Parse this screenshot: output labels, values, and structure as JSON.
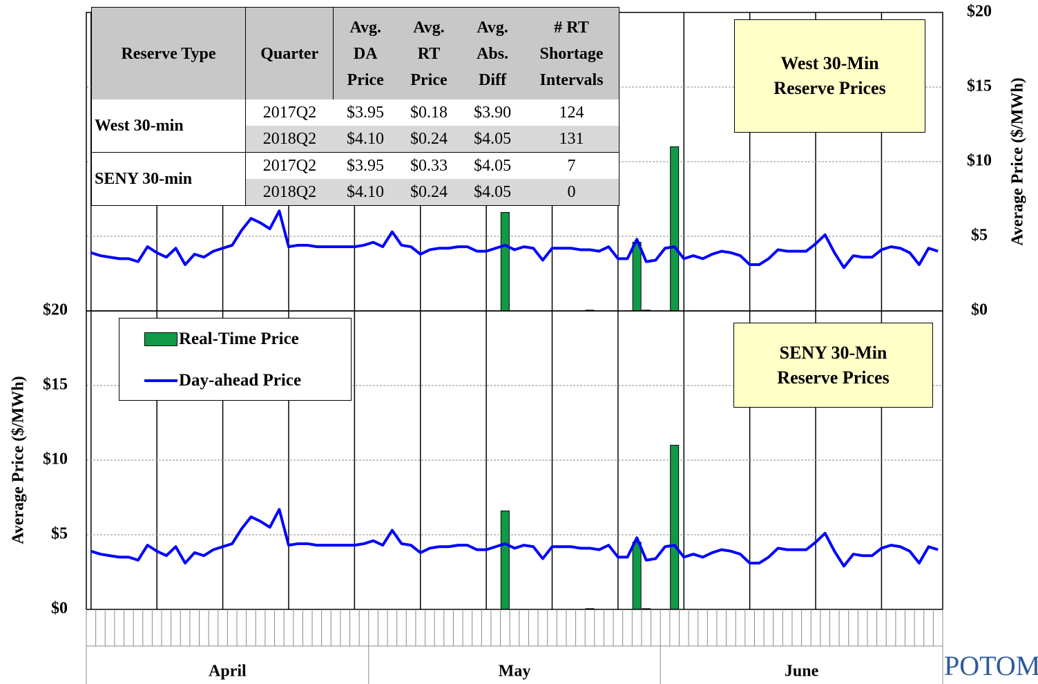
{
  "chart_data": [
    {
      "type": "combo",
      "title": "West 30-Min Reserve Prices",
      "y_label": "Average Price ($/MWh)",
      "y_axis_side": "right",
      "categories": [
        null,
        null,
        null,
        null,
        null,
        null,
        null,
        null,
        null,
        null,
        null,
        null,
        null,
        null,
        null,
        null,
        null,
        null,
        null,
        null,
        null,
        null,
        null,
        null,
        null,
        null,
        null,
        null,
        null,
        null,
        null,
        null,
        null,
        null,
        null,
        null,
        null,
        null,
        null,
        null,
        null,
        null,
        null,
        null,
        null,
        null,
        null,
        null,
        null,
        null,
        null,
        null,
        null,
        null,
        null,
        null,
        null,
        null,
        null,
        null,
        null,
        null,
        null,
        null,
        null,
        null,
        null,
        null,
        null,
        null,
        null,
        null,
        null,
        null,
        null,
        null,
        null,
        null,
        null,
        null,
        null,
        null,
        null,
        null,
        null,
        null,
        null,
        null,
        null,
        null,
        null
      ],
      "ylim": [
        0,
        20
      ],
      "grid": true,
      "yticks": [
        {
          "value": 0,
          "label": "$0"
        },
        {
          "value": 5,
          "label": "$5"
        },
        {
          "value": 10,
          "label": "$10"
        },
        {
          "value": 15,
          "label": "$15"
        },
        {
          "value": 20,
          "label": "$20"
        }
      ],
      "series": [
        {
          "kind": "bar",
          "color": "#109a47",
          "values": [
            0,
            0,
            0,
            0,
            0,
            0,
            0,
            0,
            0,
            0,
            0,
            0,
            0,
            0,
            0,
            0,
            0,
            0,
            0,
            0,
            0,
            0,
            0,
            0,
            0,
            0,
            0,
            0,
            0,
            0,
            0,
            0,
            0,
            0,
            0,
            0,
            0,
            0,
            0,
            0,
            0,
            0,
            0,
            0,
            6.6,
            0,
            0,
            0,
            0,
            0,
            0,
            0,
            0,
            0.05,
            0,
            0,
            0,
            0,
            4.6,
            0.05,
            0,
            0,
            11.0,
            0,
            0,
            0,
            0,
            0,
            0,
            0,
            0,
            0,
            0,
            0,
            0,
            0,
            0,
            0,
            0,
            0,
            0,
            0,
            0,
            0,
            0,
            0,
            0,
            0,
            0,
            0,
            0
          ]
        },
        {
          "kind": "line",
          "color": "#0000ff",
          "values": [
            3.9,
            3.7,
            3.6,
            3.5,
            3.5,
            3.3,
            4.3,
            3.9,
            3.6,
            4.2,
            3.1,
            3.8,
            3.6,
            4.0,
            4.2,
            4.4,
            5.4,
            6.2,
            5.9,
            5.5,
            6.7,
            4.3,
            4.4,
            4.4,
            4.3,
            4.3,
            4.3,
            4.3,
            4.3,
            4.4,
            4.6,
            4.3,
            5.3,
            4.4,
            4.3,
            3.8,
            4.1,
            4.2,
            4.2,
            4.3,
            4.3,
            4.0,
            4.0,
            4.2,
            4.4,
            4.1,
            4.3,
            4.2,
            3.4,
            4.2,
            4.2,
            4.2,
            4.1,
            4.1,
            4.0,
            4.3,
            3.5,
            3.5,
            4.8,
            3.3,
            3.4,
            4.2,
            4.3,
            3.5,
            3.7,
            3.5,
            3.8,
            4.0,
            3.9,
            3.7,
            3.1,
            3.1,
            3.5,
            4.1,
            4.0,
            4.0,
            4.0,
            4.5,
            5.1,
            3.9,
            2.9,
            3.7,
            3.6,
            3.6,
            4.1,
            4.3,
            4.2,
            3.9,
            3.1,
            4.2,
            4.0
          ]
        }
      ]
    },
    {
      "type": "combo",
      "title": "SENY 30-Min Reserve Prices",
      "y_label": "Average Price ($/MWh)",
      "y_axis_side": "left",
      "categories": [
        null,
        null,
        null,
        null,
        null,
        null,
        null,
        null,
        null,
        null,
        null,
        null,
        null,
        null,
        null,
        null,
        null,
        null,
        null,
        null,
        null,
        null,
        null,
        null,
        null,
        null,
        null,
        null,
        null,
        null,
        null,
        null,
        null,
        null,
        null,
        null,
        null,
        null,
        null,
        null,
        null,
        null,
        null,
        null,
        null,
        null,
        null,
        null,
        null,
        null,
        null,
        null,
        null,
        null,
        null,
        null,
        null,
        null,
        null,
        null,
        null,
        null,
        null,
        null,
        null,
        null,
        null,
        null,
        null,
        null,
        null,
        null,
        null,
        null,
        null,
        null,
        null,
        null,
        null,
        null,
        null,
        null,
        null,
        null,
        null,
        null,
        null,
        null,
        null,
        null,
        null
      ],
      "ylim": [
        0,
        20
      ],
      "grid": true,
      "legend": "top-left",
      "yticks": [
        {
          "value": 0,
          "label": "$0"
        },
        {
          "value": 5,
          "label": "$5"
        },
        {
          "value": 10,
          "label": "$10"
        },
        {
          "value": 15,
          "label": "$15"
        },
        {
          "value": 20,
          "label": "$20"
        }
      ],
      "x_groups": [
        {
          "label": "April",
          "count": 30
        },
        {
          "label": "May",
          "count": 31
        },
        {
          "label": "June",
          "count": 30
        }
      ],
      "series": [
        {
          "name": "Real-Time Price",
          "kind": "bar",
          "color": "#109a47",
          "values": [
            0,
            0,
            0,
            0,
            0,
            0,
            0,
            0,
            0,
            0,
            0,
            0,
            0,
            0,
            0,
            0,
            0,
            0,
            0,
            0,
            0,
            0,
            0,
            0,
            0,
            0,
            0,
            0,
            0,
            0,
            0,
            0,
            0,
            0,
            0,
            0,
            0,
            0,
            0,
            0,
            0,
            0,
            0,
            0,
            6.6,
            0,
            0,
            0,
            0,
            0,
            0,
            0,
            0,
            0.05,
            0,
            0,
            0,
            0,
            4.5,
            0.05,
            0,
            0,
            11.0,
            0,
            0,
            0,
            0,
            0,
            0,
            0,
            0,
            0,
            0,
            0,
            0,
            0,
            0,
            0,
            0,
            0,
            0,
            0,
            0,
            0,
            0,
            0,
            0,
            0,
            0,
            0,
            0
          ]
        },
        {
          "name": "Day-ahead Price",
          "kind": "line",
          "color": "#0000ff",
          "values": [
            3.9,
            3.7,
            3.6,
            3.5,
            3.5,
            3.3,
            4.3,
            3.9,
            3.6,
            4.2,
            3.1,
            3.8,
            3.6,
            4.0,
            4.2,
            4.4,
            5.4,
            6.2,
            5.9,
            5.5,
            6.7,
            4.3,
            4.4,
            4.4,
            4.3,
            4.3,
            4.3,
            4.3,
            4.3,
            4.4,
            4.6,
            4.3,
            5.3,
            4.4,
            4.3,
            3.8,
            4.1,
            4.2,
            4.2,
            4.3,
            4.3,
            4.0,
            4.0,
            4.2,
            4.4,
            4.1,
            4.3,
            4.2,
            3.4,
            4.2,
            4.2,
            4.2,
            4.1,
            4.1,
            4.0,
            4.3,
            3.5,
            3.5,
            4.8,
            3.3,
            3.4,
            4.2,
            4.3,
            3.5,
            3.7,
            3.5,
            3.8,
            4.0,
            3.9,
            3.7,
            3.1,
            3.1,
            3.5,
            4.1,
            4.0,
            4.0,
            4.0,
            4.5,
            5.1,
            3.9,
            2.9,
            3.7,
            3.6,
            3.6,
            4.1,
            4.3,
            4.2,
            3.9,
            3.1,
            4.2,
            4.0
          ]
        }
      ]
    }
  ],
  "table": {
    "header": [
      [
        "Reserve Type"
      ],
      [
        "Quarter"
      ],
      [
        "Avg.",
        "DA",
        "Price"
      ],
      [
        "Avg.",
        "RT",
        "Price"
      ],
      [
        "Avg.",
        "Abs.",
        "Diff"
      ],
      [
        "# RT",
        "Shortage",
        "Intervals"
      ]
    ],
    "groups": [
      {
        "label": "West 30-min",
        "rows": [
          [
            "2017Q2",
            "$3.95",
            "$0.18",
            "$3.90",
            "124"
          ],
          [
            "2018Q2",
            "$4.10",
            "$0.24",
            "$4.05",
            "131"
          ]
        ]
      },
      {
        "label": "SENY 30-min",
        "rows": [
          [
            "2017Q2",
            "$3.95",
            "$0.33",
            "$4.05",
            "7"
          ],
          [
            "2018Q2",
            "$4.10",
            "$0.24",
            "$4.05",
            "0"
          ]
        ]
      }
    ]
  },
  "logo": "POTOMAC"
}
